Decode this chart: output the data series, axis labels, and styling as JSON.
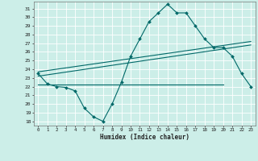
{
  "title": "",
  "xlabel": "Humidex (Indice chaleur)",
  "bg_color": "#cceee8",
  "grid_color": "#ffffff",
  "line_color": "#006868",
  "xlim": [
    -0.5,
    23.5
  ],
  "ylim": [
    17.5,
    31.8
  ],
  "yticks": [
    18,
    19,
    20,
    21,
    22,
    23,
    24,
    25,
    26,
    27,
    28,
    29,
    30,
    31
  ],
  "xticks": [
    0,
    1,
    2,
    3,
    4,
    5,
    6,
    7,
    8,
    9,
    10,
    11,
    12,
    13,
    14,
    15,
    16,
    17,
    18,
    19,
    20,
    21,
    22,
    23
  ],
  "main_x": [
    0,
    1,
    2,
    3,
    4,
    5,
    6,
    7,
    8,
    9,
    10,
    11,
    12,
    13,
    14,
    15,
    16,
    17,
    18,
    19,
    20,
    21,
    22,
    23
  ],
  "main_y": [
    23.5,
    22.3,
    22.0,
    21.9,
    21.5,
    19.5,
    18.5,
    18.0,
    20.0,
    22.5,
    25.5,
    27.5,
    29.5,
    30.5,
    31.5,
    30.5,
    30.5,
    29.0,
    27.5,
    26.5,
    26.5,
    25.5,
    23.5,
    22.0
  ],
  "line1_x": [
    0,
    23
  ],
  "line1_y": [
    23.2,
    26.8
  ],
  "line2_x": [
    0,
    23
  ],
  "line2_y": [
    23.7,
    27.2
  ],
  "line3_x": [
    0,
    20
  ],
  "line3_y": [
    22.2,
    22.2
  ]
}
